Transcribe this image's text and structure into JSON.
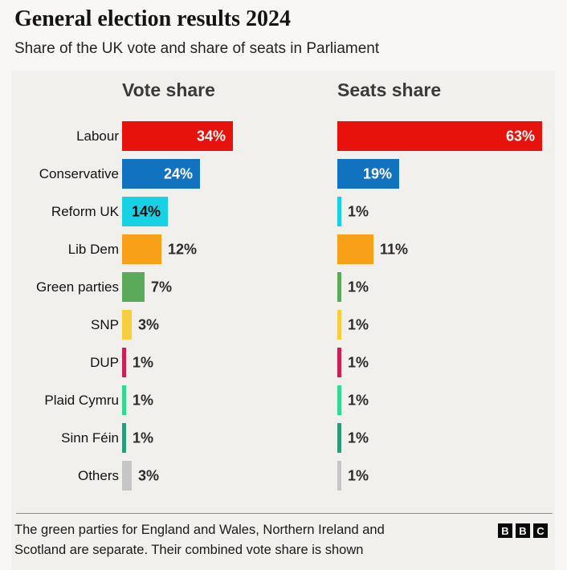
{
  "title": "General election results 2024",
  "subtitle": "Share of the UK vote and share of seats in Parliament",
  "columns": {
    "vote_header": "Vote share",
    "seats_header": "Seats share"
  },
  "rows": [
    {
      "party": "Labour",
      "color": "#e8120c",
      "vote": {
        "value": 34,
        "label": "34%",
        "inside": true,
        "text_color": "#ffffff"
      },
      "seats": {
        "value": 63,
        "label": "63%",
        "inside": true,
        "text_color": "#ffffff"
      }
    },
    {
      "party": "Conservative",
      "color": "#1172c0",
      "vote": {
        "value": 24,
        "label": "24%",
        "inside": true,
        "text_color": "#ffffff"
      },
      "seats": {
        "value": 19,
        "label": "19%",
        "inside": true,
        "text_color": "#ffffff"
      }
    },
    {
      "party": "Reform UK",
      "color": "#18d2e3",
      "vote": {
        "value": 14,
        "label": "14%",
        "inside": true,
        "text_color": "#0b0b0b"
      },
      "seats": {
        "value": 1,
        "label": "1%",
        "inside": false,
        "text_color": "#2b2b2b"
      }
    },
    {
      "party": "Lib Dem",
      "color": "#f9a019",
      "vote": {
        "value": 12,
        "label": "12%",
        "inside": false,
        "text_color": "#2b2b2b"
      },
      "seats": {
        "value": 11,
        "label": "11%",
        "inside": false,
        "text_color": "#2b2b2b"
      }
    },
    {
      "party": "Green parties",
      "color": "#5ba95b",
      "vote": {
        "value": 7,
        "label": "7%",
        "inside": false,
        "text_color": "#2b2b2b"
      },
      "seats": {
        "value": 1,
        "label": "1%",
        "inside": false,
        "text_color": "#2b2b2b"
      }
    },
    {
      "party": "SNP",
      "color": "#f8cd3e",
      "vote": {
        "value": 3,
        "label": "3%",
        "inside": false,
        "text_color": "#2b2b2b"
      },
      "seats": {
        "value": 1,
        "label": "1%",
        "inside": false,
        "text_color": "#2b2b2b"
      }
    },
    {
      "party": "DUP",
      "color": "#cb2051",
      "vote": {
        "value": 1,
        "label": "1%",
        "inside": false,
        "text_color": "#2b2b2b"
      },
      "seats": {
        "value": 1,
        "label": "1%",
        "inside": false,
        "text_color": "#2b2b2b"
      }
    },
    {
      "party": "Plaid Cymru",
      "color": "#33d98c",
      "vote": {
        "value": 1,
        "label": "1%",
        "inside": false,
        "text_color": "#2b2b2b"
      },
      "seats": {
        "value": 1,
        "label": "1%",
        "inside": false,
        "text_color": "#2b2b2b"
      }
    },
    {
      "party": "Sinn Féin",
      "color": "#2a9c7c",
      "vote": {
        "value": 1,
        "label": "1%",
        "inside": false,
        "text_color": "#2b2b2b"
      },
      "seats": {
        "value": 1,
        "label": "1%",
        "inside": false,
        "text_color": "#2b2b2b"
      }
    },
    {
      "party": "Others",
      "color": "#c6c6c6",
      "vote": {
        "value": 3,
        "label": "3%",
        "inside": false,
        "text_color": "#2b2b2b"
      },
      "seats": {
        "value": 1,
        "label": "1%",
        "inside": false,
        "text_color": "#2b2b2b"
      }
    }
  ],
  "footer": {
    "note_line1": "The green parties for England and Wales, Northern Ireland and",
    "note_line2": "Scotland are separate. Their combined vote share is shown",
    "logo": [
      "B",
      "B",
      "C"
    ]
  },
  "chart_data": {
    "type": "bar",
    "orientation": "horizontal",
    "title": "General election results 2024",
    "subtitle": "Share of the UK vote and share of seats in Parliament",
    "categories": [
      "Labour",
      "Conservative",
      "Reform UK",
      "Lib Dem",
      "Green parties",
      "SNP",
      "DUP",
      "Plaid Cymru",
      "Sinn Féin",
      "Others"
    ],
    "series": [
      {
        "name": "Vote share",
        "values": [
          34,
          24,
          14,
          12,
          7,
          3,
          1,
          1,
          1,
          3
        ],
        "unit": "%"
      },
      {
        "name": "Seats share",
        "values": [
          63,
          19,
          1,
          11,
          1,
          1,
          1,
          1,
          1,
          1
        ],
        "unit": "%"
      }
    ],
    "bar_colors": [
      "#e8120c",
      "#1172c0",
      "#18d2e3",
      "#f9a019",
      "#5ba95b",
      "#f8cd3e",
      "#cb2051",
      "#33d98c",
      "#2a9c7c",
      "#c6c6c6"
    ],
    "grid": false,
    "legend_position": "column-headers",
    "value_labels": "shown on each bar",
    "annotation": "The green parties for England and Wales, Northern Ireland and Scotland are separate. Their combined vote share is shown",
    "source_logo": "BBC"
  }
}
